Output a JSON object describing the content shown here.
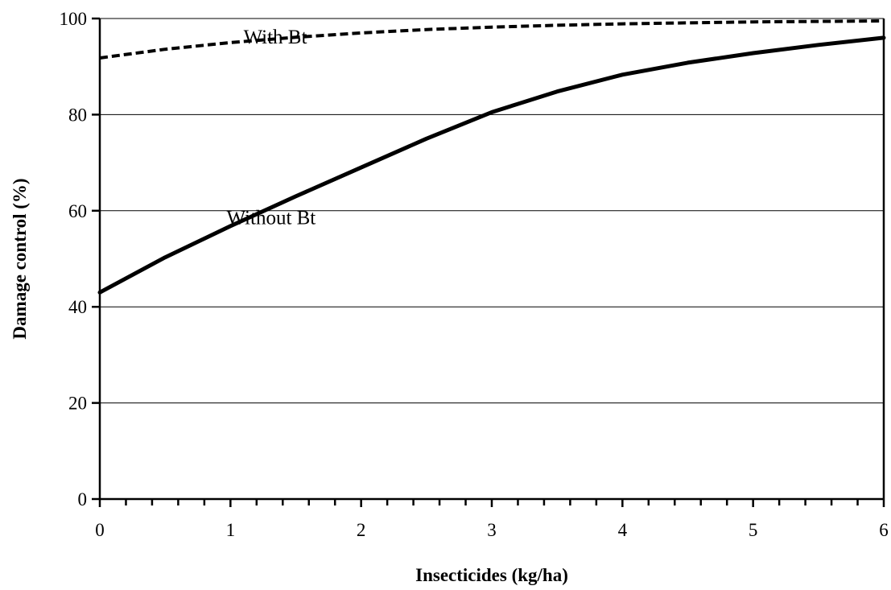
{
  "chart_data": {
    "type": "line",
    "title": "",
    "xlabel": "Insecticides (kg/ha)",
    "ylabel": "Damage control (%)",
    "xlim": [
      0,
      6
    ],
    "ylim": [
      0,
      100
    ],
    "x_ticks": [
      "0",
      "1",
      "2",
      "3",
      "4",
      "5",
      "6"
    ],
    "y_ticks": [
      "0",
      "20",
      "40",
      "60",
      "80",
      "100"
    ],
    "grid": "horizontal",
    "legend": "none",
    "series": [
      {
        "name": "With Bt",
        "style": "dashed",
        "color": "#000000",
        "x": [
          0,
          0.5,
          1,
          1.5,
          2,
          2.5,
          3,
          3.5,
          4,
          4.5,
          5,
          5.5,
          6
        ],
        "y": [
          91.8,
          93.6,
          95.0,
          96.1,
          97.0,
          97.7,
          98.2,
          98.6,
          98.9,
          99.1,
          99.3,
          99.4,
          99.5
        ]
      },
      {
        "name": "Without Bt",
        "style": "solid",
        "color": "#000000",
        "x": [
          0,
          0.5,
          1,
          1.5,
          2,
          2.5,
          3,
          3.5,
          4,
          4.5,
          5,
          5.5,
          6
        ],
        "y": [
          43.0,
          50.3,
          56.8,
          63.0,
          69.0,
          75.0,
          80.5,
          84.8,
          88.3,
          90.8,
          92.8,
          94.5,
          96.0
        ]
      }
    ],
    "annotations": [
      {
        "text": "With Bt",
        "x": 1.1,
        "y": 94.8
      },
      {
        "text": "Without Bt",
        "x": 0.97,
        "y": 57.2
      }
    ]
  }
}
